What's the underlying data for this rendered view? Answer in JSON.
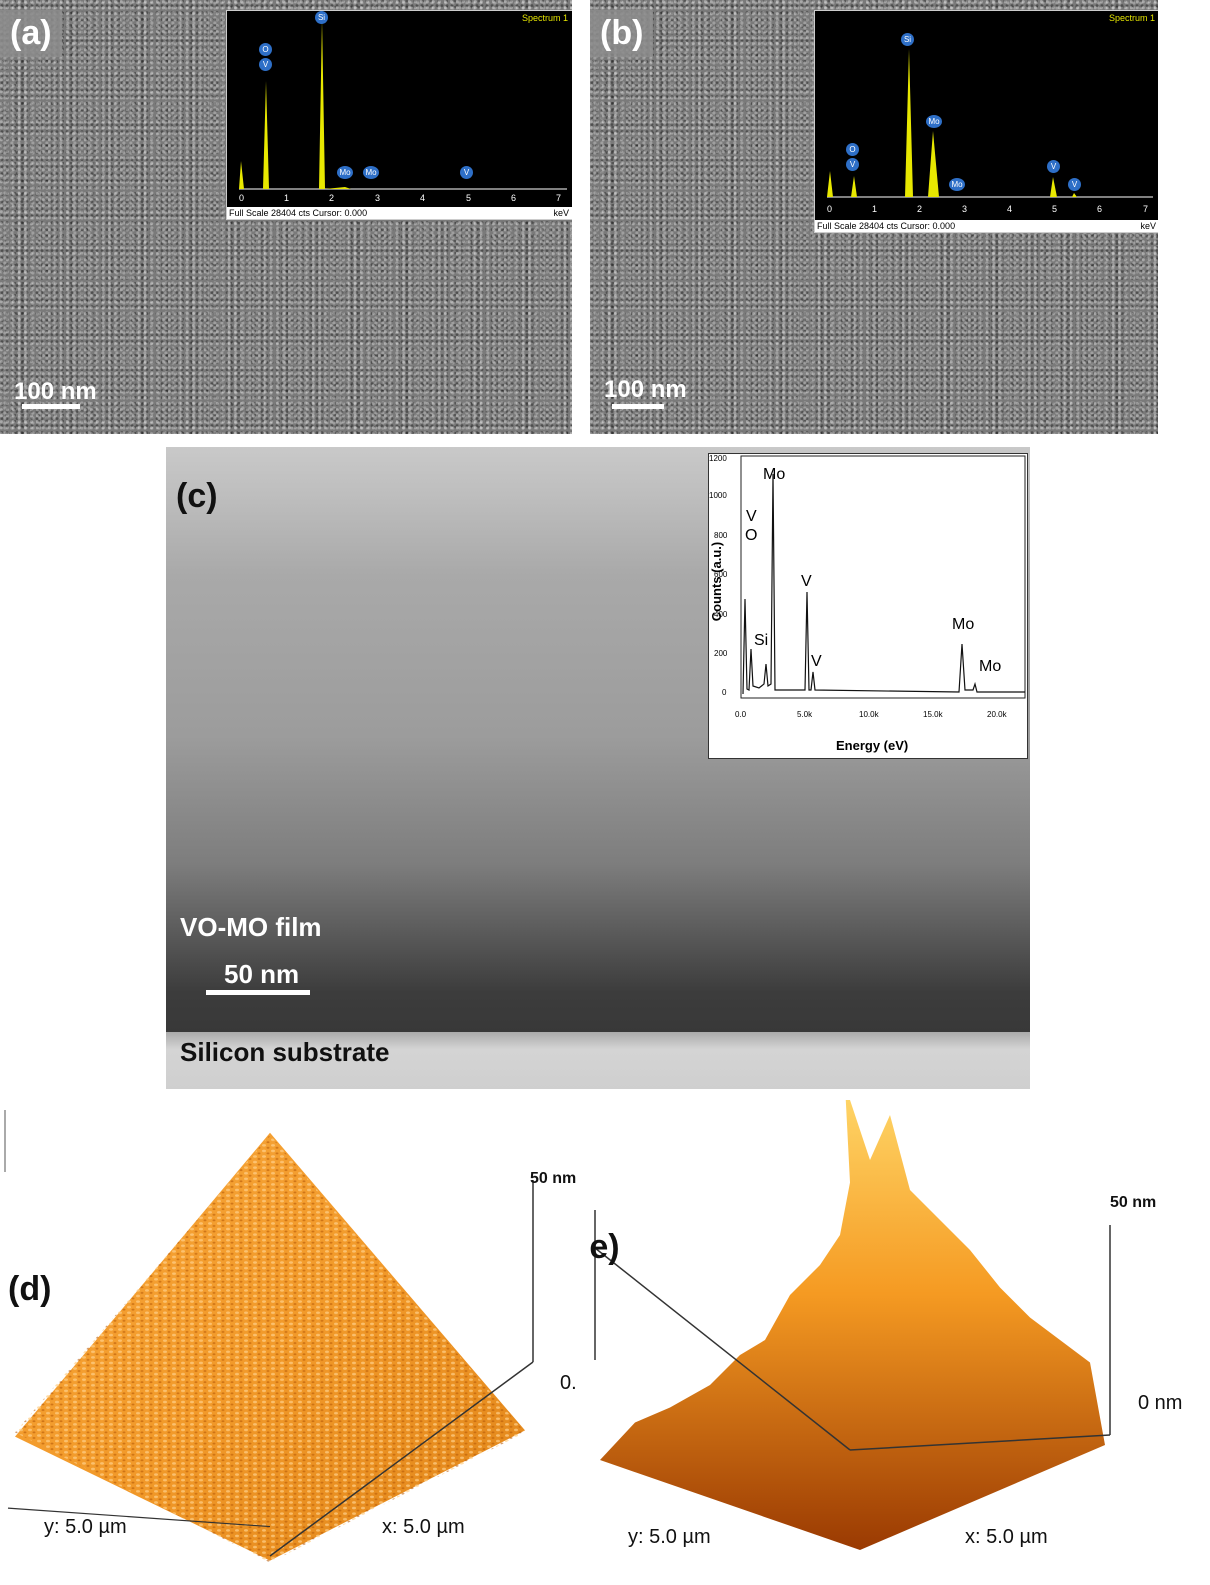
{
  "panel_a": {
    "letter": "(a)",
    "scale_label": "100 nm",
    "eds": {
      "title": "Spectrum 1",
      "footer": "Full Scale 28404 cts Cursor: 0.000",
      "unit": "keV",
      "ticks": [
        "0",
        "1",
        "2",
        "3",
        "4",
        "5",
        "6",
        "7"
      ],
      "labels": [
        "O",
        "V",
        "Si",
        "Mo",
        "Mo",
        "V"
      ]
    }
  },
  "panel_b": {
    "letter": "(b)",
    "scale_label": "100 nm",
    "eds": {
      "title": "Spectrum 1",
      "footer": "Full Scale 28404 cts Cursor: 0.000",
      "unit": "keV",
      "ticks": [
        "0",
        "1",
        "2",
        "3",
        "4",
        "5",
        "6",
        "7"
      ],
      "labels": [
        "O",
        "V",
        "Si",
        "Mo",
        "Mo",
        "V",
        "V"
      ]
    }
  },
  "panel_c": {
    "letter": "(c)",
    "film_label": "VO-MO film",
    "scale_label": "50 nm",
    "substrate_label": "Silicon substrate",
    "inset": {
      "ylabel": "Counts (a.u.)",
      "xlabel": "Energy (eV)",
      "yticks": [
        "0",
        "200",
        "400",
        "600",
        "800",
        "1000",
        "1200"
      ],
      "xticks": [
        "0.0",
        "5.0k",
        "10.0k",
        "15.0k",
        "20.0k"
      ],
      "peak_labels": [
        "V",
        "O",
        "Mo",
        "Si",
        "V",
        "V",
        "Mo",
        "Mo"
      ]
    }
  },
  "panel_d": {
    "letter": "(d)",
    "z_label": "50 nm",
    "z_zero": "0.",
    "y_label": "y: 5.0 µm",
    "x_label": "x: 5.0 µm"
  },
  "panel_e": {
    "letter": "(e)",
    "z_label": "50 nm",
    "z_zero": "0 nm",
    "y_label": "y: 5.0 µm",
    "x_label": "x: 5.0 µm"
  },
  "colors": {
    "eds_peak": "#e8e800",
    "afm_light": "#ffcc4d",
    "afm_mid": "#f08a10",
    "afm_dark": "#8a2a00",
    "eds_label_bg": "#2e6fc7"
  }
}
